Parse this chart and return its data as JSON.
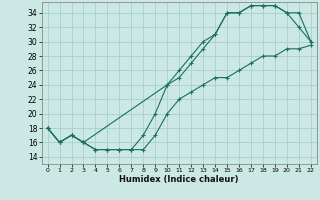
{
  "xlabel": "Humidex (Indice chaleur)",
  "bg_color": "#cce8e4",
  "grid_color": "#aad4cc",
  "line_color": "#1a6e62",
  "xlim": [
    -0.5,
    22.5
  ],
  "ylim": [
    13.0,
    35.5
  ],
  "xticks": [
    0,
    1,
    2,
    3,
    4,
    5,
    6,
    7,
    8,
    9,
    10,
    11,
    12,
    13,
    14,
    15,
    16,
    17,
    18,
    19,
    20,
    21,
    22
  ],
  "yticks": [
    14,
    16,
    18,
    20,
    22,
    24,
    26,
    28,
    30,
    32,
    34
  ],
  "line1_x": [
    0,
    1,
    2,
    3,
    4,
    5,
    6,
    7,
    8,
    9,
    10,
    11,
    12,
    13,
    14,
    15,
    16,
    17,
    18,
    19,
    20,
    21,
    22
  ],
  "line1_y": [
    18,
    16,
    17,
    16,
    15,
    15,
    15,
    15,
    17,
    20,
    24,
    26,
    28,
    30,
    31,
    34,
    34,
    35,
    35,
    35,
    34,
    34,
    30
  ],
  "line2_x": [
    0,
    1,
    2,
    3,
    10,
    11,
    12,
    13,
    14,
    15,
    16,
    17,
    18,
    19,
    20,
    21,
    22
  ],
  "line2_y": [
    18,
    16,
    17,
    16,
    24,
    25,
    27,
    29,
    31,
    34,
    34,
    35,
    35,
    35,
    34,
    32,
    30
  ],
  "line3_x": [
    0,
    1,
    2,
    3,
    4,
    5,
    6,
    7,
    8,
    9,
    10,
    11,
    12,
    13,
    14,
    15,
    16,
    17,
    18,
    19,
    20,
    21,
    22
  ],
  "line3_y": [
    18,
    16,
    17,
    16,
    15,
    15,
    15,
    15,
    15,
    17,
    20,
    22,
    23,
    24,
    25,
    25,
    26,
    27,
    28,
    28,
    29,
    29,
    29.5
  ]
}
